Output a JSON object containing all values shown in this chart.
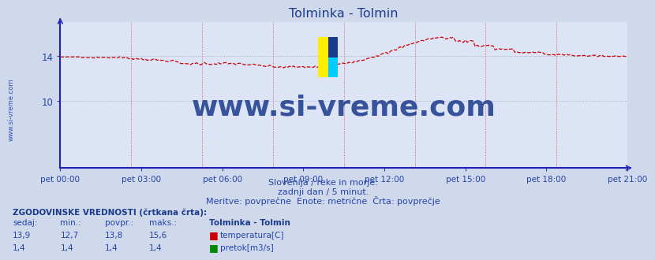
{
  "title": "Tolminka - Tolmin",
  "subtitle1": "Slovenija / reke in morje.",
  "subtitle2": "zadnji dan / 5 minut.",
  "subtitle3": "Meritve: povprečne  Enote: metrične  Črta: povprečje",
  "watermark_text": "www.si-vreme.com",
  "watermark_side": "www.si-vreme.com",
  "xlabel_ticks": [
    "pet 00:00",
    "pet 03:00",
    "pet 06:00",
    "pet 09:00",
    "pet 12:00",
    "pet 15:00",
    "pet 18:00",
    "pet 21:00"
  ],
  "yticks": [
    10,
    14
  ],
  "ylim": [
    4.0,
    17.0
  ],
  "n_points": 288,
  "bg_color": "#d0d8ec",
  "plot_bg_color": "#dce4f5",
  "title_color": "#1a3a8c",
  "axis_color": "#2222bb",
  "tick_color": "#2244aa",
  "grid_color_v": "#cc3333",
  "grid_color_h": "#9999bb",
  "temp_color": "#cc0000",
  "flow_color": "#008800",
  "legend_title": "Tolminka - Tolmin",
  "legend_temp": "temperatura[C]",
  "legend_flow": "pretok[m3/s]",
  "table_header": "ZGODOVINSKE VREDNOSTI (črtkana črta):",
  "col_headers": [
    "sedaj:",
    "min.:",
    "povpr.:",
    "maks.:"
  ],
  "temp_values": [
    "13,9",
    "12,7",
    "13,8",
    "15,6"
  ],
  "flow_values": [
    "1,4",
    "1,4",
    "1,4",
    "1,4"
  ]
}
